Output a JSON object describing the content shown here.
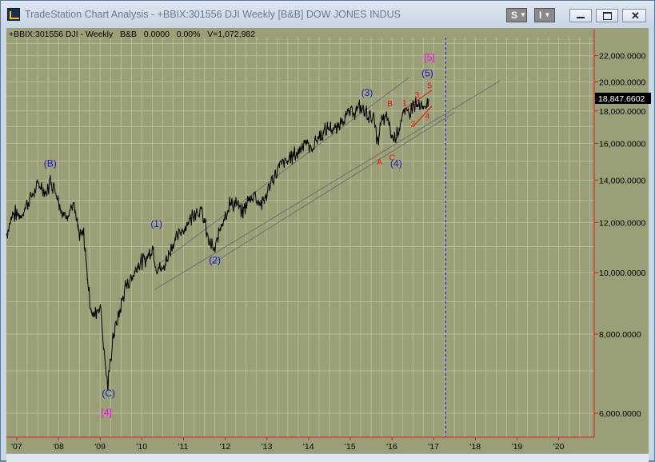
{
  "window": {
    "title": "TradeStation Chart Analysis - +BBIX:301556 DJI Weekly [B&B] DOW JONES INDUS",
    "btn_s": "S",
    "btn_i": "I",
    "accent_colors": {
      "frame": "#c9d6e4",
      "chart_bg": "#9b9f78",
      "price_line": "#000000",
      "grid": "#b8bb98",
      "axis_red": "#cc2020",
      "wave_blue": "#1515cc",
      "wave_magenta": "#ff00ff",
      "wave_red": "#e01010"
    }
  },
  "chart_header": {
    "symbol": "+BBIX:301556 DJI - Weekly",
    "style": "B&B",
    "change": "0.0000",
    "pct": "0.00%",
    "volume": "V=1,072,982"
  },
  "chart_data": {
    "type": "line",
    "title": "+BBIX:301556 DJI - Weekly",
    "yscale": "log",
    "ylim": [
      5500,
      23500
    ],
    "grid": true,
    "current_value_label": "18,847.6602",
    "y_ticks": [
      "22,000.0000",
      "20,000.0000",
      "18,000.0000",
      "16,000.0000",
      "14,000.0000",
      "12,000.0000",
      "10,000.0000",
      "8,000.0000",
      "6,000.0000"
    ],
    "x_ticks": [
      "'07",
      "'08",
      "'09",
      "'10",
      "'11",
      "'12",
      "'13",
      "'14",
      "'15",
      "'16",
      "'17",
      "'18",
      "'19",
      "'20"
    ],
    "x_tick_years": [
      2007,
      2008,
      2009,
      2010,
      2011,
      2012,
      2013,
      2014,
      2015,
      2016,
      2017,
      2018,
      2019,
      2020
    ],
    "series": [
      {
        "x": [
          2006.75,
          2006.9,
          2007.1,
          2007.2,
          2007.35,
          2007.45,
          2007.55,
          2007.7,
          2007.8,
          2007.95,
          2008.05,
          2008.15,
          2008.35,
          2008.5,
          2008.6,
          2008.75,
          2008.83,
          2008.9,
          2009.0,
          2009.1,
          2009.18,
          2009.3,
          2009.45,
          2009.6,
          2009.75,
          2009.9,
          2010.1,
          2010.25,
          2010.35,
          2010.5,
          2010.7,
          2010.9,
          2011.1,
          2011.3,
          2011.45,
          2011.6,
          2011.75,
          2011.9,
          2012.1,
          2012.25,
          2012.4,
          2012.55,
          2012.7,
          2012.85,
          2012.95,
          2013.1,
          2013.35,
          2013.45,
          2013.6,
          2013.75,
          2013.9,
          2014.05,
          2014.2,
          2014.35,
          2014.5,
          2014.65,
          2014.8,
          2014.95,
          2015.1,
          2015.25,
          2015.4,
          2015.55,
          2015.65,
          2015.75,
          2015.9,
          2016.0,
          2016.1,
          2016.25,
          2016.4,
          2016.5,
          2016.6,
          2016.7,
          2016.8,
          2016.88
        ],
        "values": [
          11500,
          12400,
          12300,
          12700,
          13200,
          13500,
          13800,
          13300,
          14000,
          13400,
          12600,
          12300,
          12800,
          11400,
          11500,
          9000,
          8500,
          8700,
          8900,
          7400,
          6600,
          7900,
          8600,
          9500,
          9800,
          10300,
          10500,
          11000,
          10200,
          10100,
          11000,
          11500,
          12000,
          12600,
          12400,
          11200,
          10800,
          12000,
          12800,
          12900,
          12400,
          13000,
          13300,
          12800,
          13100,
          13900,
          14900,
          14900,
          15300,
          15500,
          16200,
          15600,
          16300,
          16600,
          17000,
          16700,
          17500,
          17800,
          18000,
          18200,
          17800,
          17600,
          16000,
          17400,
          17500,
          16300,
          16500,
          17700,
          17900,
          18400,
          18400,
          18200,
          18000,
          18800
        ]
      }
    ],
    "current_value": 18847.6602,
    "future_marker_year": 2017.28,
    "channel_lines": [
      {
        "from": [
          2010.3,
          10200
        ],
        "to": [
          2016.4,
          20300
        ]
      },
      {
        "from": [
          2010.3,
          9400
        ],
        "to": [
          2018.6,
          20100
        ]
      },
      {
        "from": [
          2011.65,
          10300
        ],
        "to": [
          2017.5,
          17900
        ]
      },
      {
        "from": [
          2016.25,
          18000
        ],
        "to": [
          2016.95,
          19400
        ]
      },
      {
        "from": [
          2016.5,
          17000
        ],
        "to": [
          2016.95,
          18300
        ]
      }
    ],
    "annotations": [
      {
        "text": "(B)",
        "x": 2007.8,
        "y": 14700,
        "color": "blue"
      },
      {
        "text": "(C)",
        "x": 2009.2,
        "y": 6380,
        "color": "blue"
      },
      {
        "text": "[4]",
        "x": 2009.15,
        "y": 5950,
        "color": "magenta"
      },
      {
        "text": "(1)",
        "x": 2010.35,
        "y": 11800,
        "color": "blue"
      },
      {
        "text": "(2)",
        "x": 2011.75,
        "y": 10350,
        "color": "blue"
      },
      {
        "text": "(3)",
        "x": 2015.4,
        "y": 19000,
        "color": "blue"
      },
      {
        "text": "A",
        "x": 2015.7,
        "y": 14800,
        "color": "red"
      },
      {
        "text": "B",
        "x": 2015.95,
        "y": 18300,
        "color": "red"
      },
      {
        "text": "C",
        "x": 2016.0,
        "y": 15050,
        "color": "red"
      },
      {
        "text": "(4)",
        "x": 2016.1,
        "y": 14700,
        "color": "blue"
      },
      {
        "text": "1",
        "x": 2016.3,
        "y": 18350,
        "color": "red"
      },
      {
        "text": "2",
        "x": 2016.5,
        "y": 17000,
        "color": "red"
      },
      {
        "text": "3",
        "x": 2016.6,
        "y": 18900,
        "color": "red"
      },
      {
        "text": "4",
        "x": 2016.85,
        "y": 17500,
        "color": "red"
      },
      {
        "text": "5",
        "x": 2016.9,
        "y": 19550,
        "color": "red"
      },
      {
        "text": "(5)",
        "x": 2016.85,
        "y": 20400,
        "color": "blue"
      },
      {
        "text": "[5]",
        "x": 2016.9,
        "y": 21600,
        "color": "magenta"
      }
    ]
  }
}
